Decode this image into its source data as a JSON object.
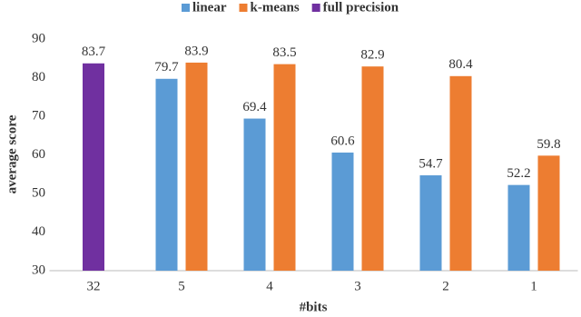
{
  "chart_data": {
    "type": "bar",
    "x_label": "#bits",
    "y_label": "average score",
    "categories": [
      "32",
      "5",
      "4",
      "3",
      "2",
      "1"
    ],
    "series": [
      {
        "name": "linear",
        "color": "#5b9bd5",
        "values": [
          null,
          79.7,
          69.4,
          60.6,
          54.7,
          52.2
        ]
      },
      {
        "name": "k-means",
        "color": "#ed7d31",
        "values": [
          null,
          83.9,
          83.5,
          82.9,
          80.4,
          59.8
        ]
      },
      {
        "name": "full precision",
        "color": "#7030a0",
        "values": [
          83.7,
          null,
          null,
          null,
          null,
          null
        ]
      }
    ],
    "ylim": [
      30,
      90
    ],
    "yticks": [
      30,
      40,
      50,
      60,
      70,
      80,
      90
    ],
    "grid": false,
    "legend": "top"
  }
}
